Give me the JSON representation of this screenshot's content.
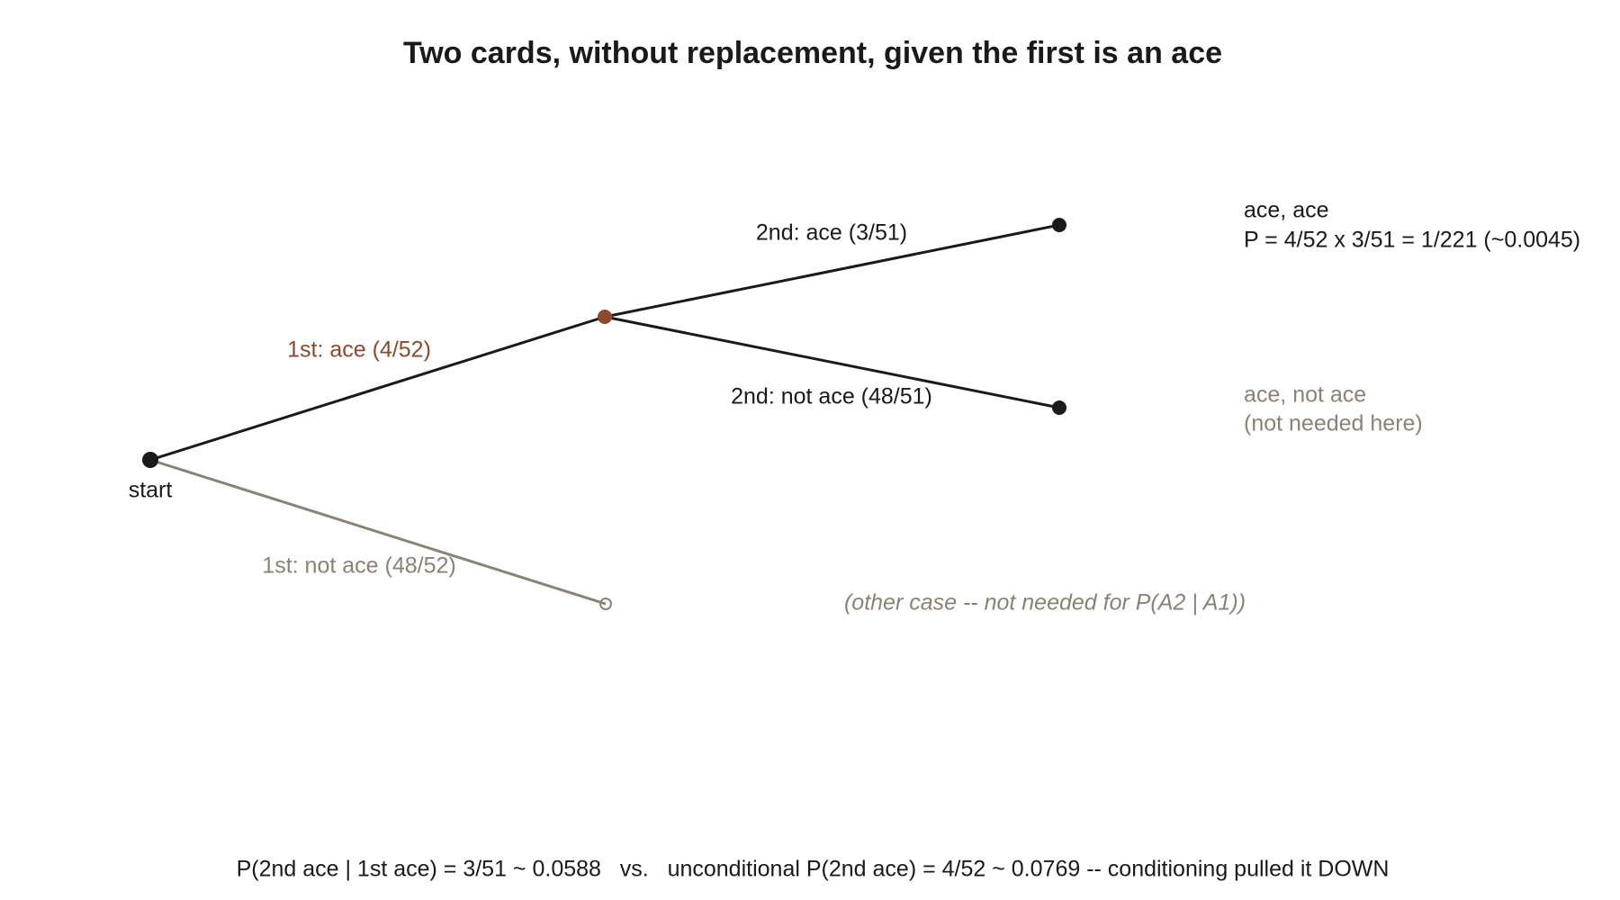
{
  "title": "Two cards, without replacement, given the first is an ace",
  "nodes": [
    {
      "label": "start"
    }
  ],
  "edges": [
    {
      "label": "1st: ace (4/52)"
    },
    {
      "label": "2nd: ace (3/51)"
    },
    {
      "label": "2nd: not ace (48/51)"
    },
    {
      "label": "1st: not ace (48/52)"
    }
  ],
  "outcomes": [
    {
      "label": "ace, ace",
      "detail": "P = 4/52 x 3/51 = 1/221 (~0.0045)"
    },
    {
      "label": "ace, not ace",
      "detail": "(not needed here)"
    }
  ],
  "note": "(other case -- not needed for P(A2 | A1))",
  "footer": "P(2nd ace | 1st ace) = 3/51 ~ 0.0588   vs.   unconditional P(2nd ace) = 4/52 ~ 0.0769 -- conditioning pulled it DOWN"
}
